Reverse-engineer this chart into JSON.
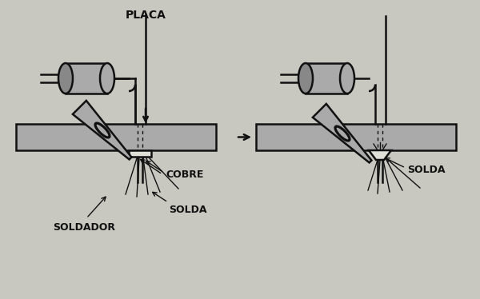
{
  "bg_color": "#c8c8c0",
  "line_color": "#111111",
  "fill_color": "#aaaaaa",
  "dark_fill": "#888888",
  "white_fill": "#e0e0d8",
  "labels": {
    "placa": "PLACA",
    "cobre": "COBRE",
    "solda_left": "SOLDA",
    "soldador": "SOLDADOR",
    "solda_right": "SOLDA"
  },
  "text_color": "#111111",
  "font_size": 9,
  "lw": 1.8,
  "lw_thin": 1.0,
  "lw_thick": 2.5
}
